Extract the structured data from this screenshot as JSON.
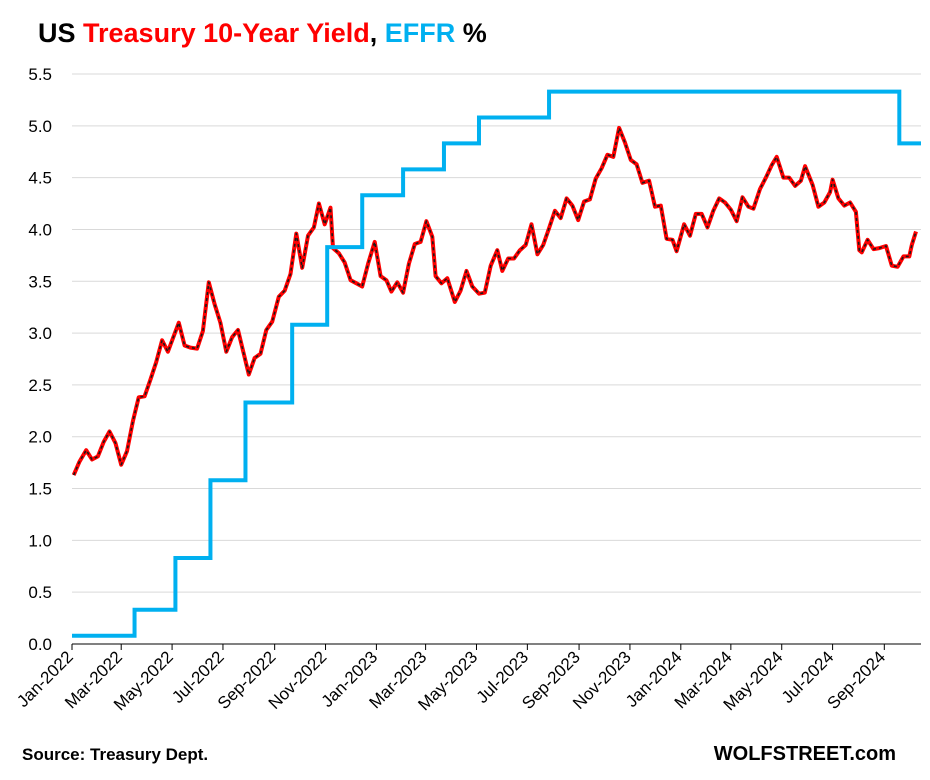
{
  "header": {
    "title_parts": [
      "US ",
      "Treasury 10-Year Yield",
      ", ",
      "EFFR",
      " %"
    ]
  },
  "footer": {
    "source": "Source: Treasury Dept.",
    "brand": "WOLFSTREET.com"
  },
  "colors": {
    "treasury": "#ff0000",
    "treasury_overlay": "#1a1a1a",
    "effr": "#00b0f0",
    "grid": "#d9d9d9",
    "axis": "#000000"
  },
  "chart_data": {
    "type": "line",
    "title": "US Treasury 10-Year Yield, EFFR %",
    "ylim": [
      0.0,
      5.5
    ],
    "y_ticks": [
      "0.0",
      "0.5",
      "1.0",
      "1.5",
      "2.0",
      "2.5",
      "3.0",
      "3.5",
      "4.0",
      "4.5",
      "5.0",
      "5.5"
    ],
    "x_range": [
      "2022-01-01",
      "2024-10-15"
    ],
    "x_ticks": [
      "Jan-2022",
      "Mar-2022",
      "May-2022",
      "Jul-2022",
      "Sep-2022",
      "Nov-2022",
      "Jan-2023",
      "Mar-2023",
      "May-2023",
      "Jul-2023",
      "Sep-2023",
      "Nov-2023",
      "Jan-2024",
      "Mar-2024",
      "May-2024",
      "Jul-2024",
      "Sep-2024"
    ],
    "grid": "horizontal",
    "legend": "none (series named in title)",
    "series": [
      {
        "name": "Treasury 10-Year Yield",
        "style": "line",
        "points": [
          [
            "2022-01-03",
            1.63
          ],
          [
            "2022-01-10",
            1.76
          ],
          [
            "2022-01-18",
            1.87
          ],
          [
            "2022-01-25",
            1.78
          ],
          [
            "2022-02-01",
            1.81
          ],
          [
            "2022-02-08",
            1.95
          ],
          [
            "2022-02-15",
            2.05
          ],
          [
            "2022-02-22",
            1.94
          ],
          [
            "2022-03-01",
            1.73
          ],
          [
            "2022-03-08",
            1.86
          ],
          [
            "2022-03-15",
            2.15
          ],
          [
            "2022-03-22",
            2.38
          ],
          [
            "2022-03-29",
            2.39
          ],
          [
            "2022-04-05",
            2.55
          ],
          [
            "2022-04-12",
            2.72
          ],
          [
            "2022-04-19",
            2.93
          ],
          [
            "2022-04-26",
            2.82
          ],
          [
            "2022-05-03",
            2.97
          ],
          [
            "2022-05-09",
            3.1
          ],
          [
            "2022-05-16",
            2.88
          ],
          [
            "2022-05-23",
            2.86
          ],
          [
            "2022-05-31",
            2.85
          ],
          [
            "2022-06-07",
            3.02
          ],
          [
            "2022-06-14",
            3.49
          ],
          [
            "2022-06-21",
            3.28
          ],
          [
            "2022-06-28",
            3.1
          ],
          [
            "2022-07-05",
            2.82
          ],
          [
            "2022-07-12",
            2.96
          ],
          [
            "2022-07-19",
            3.03
          ],
          [
            "2022-07-26",
            2.8
          ],
          [
            "2022-08-01",
            2.6
          ],
          [
            "2022-08-08",
            2.76
          ],
          [
            "2022-08-15",
            2.8
          ],
          [
            "2022-08-22",
            3.03
          ],
          [
            "2022-08-29",
            3.11
          ],
          [
            "2022-09-06",
            3.35
          ],
          [
            "2022-09-13",
            3.41
          ],
          [
            "2022-09-20",
            3.57
          ],
          [
            "2022-09-27",
            3.96
          ],
          [
            "2022-10-04",
            3.63
          ],
          [
            "2022-10-11",
            3.94
          ],
          [
            "2022-10-18",
            4.02
          ],
          [
            "2022-10-24",
            4.25
          ],
          [
            "2022-10-31",
            4.05
          ],
          [
            "2022-11-07",
            4.21
          ],
          [
            "2022-11-10",
            3.82
          ],
          [
            "2022-11-17",
            3.77
          ],
          [
            "2022-11-24",
            3.68
          ],
          [
            "2022-12-01",
            3.51
          ],
          [
            "2022-12-08",
            3.48
          ],
          [
            "2022-12-15",
            3.45
          ],
          [
            "2022-12-22",
            3.67
          ],
          [
            "2022-12-30",
            3.88
          ],
          [
            "2023-01-06",
            3.55
          ],
          [
            "2023-01-13",
            3.51
          ],
          [
            "2023-01-19",
            3.4
          ],
          [
            "2023-01-26",
            3.49
          ],
          [
            "2023-02-02",
            3.39
          ],
          [
            "2023-02-09",
            3.67
          ],
          [
            "2023-02-16",
            3.86
          ],
          [
            "2023-02-23",
            3.88
          ],
          [
            "2023-03-02",
            4.08
          ],
          [
            "2023-03-09",
            3.93
          ],
          [
            "2023-03-13",
            3.55
          ],
          [
            "2023-03-20",
            3.48
          ],
          [
            "2023-03-27",
            3.53
          ],
          [
            "2023-04-05",
            3.3
          ],
          [
            "2023-04-12",
            3.41
          ],
          [
            "2023-04-19",
            3.6
          ],
          [
            "2023-04-26",
            3.45
          ],
          [
            "2023-05-04",
            3.38
          ],
          [
            "2023-05-11",
            3.39
          ],
          [
            "2023-05-18",
            3.65
          ],
          [
            "2023-05-26",
            3.8
          ],
          [
            "2023-06-01",
            3.6
          ],
          [
            "2023-06-08",
            3.72
          ],
          [
            "2023-06-15",
            3.72
          ],
          [
            "2023-06-22",
            3.8
          ],
          [
            "2023-06-29",
            3.85
          ],
          [
            "2023-07-06",
            4.05
          ],
          [
            "2023-07-13",
            3.76
          ],
          [
            "2023-07-20",
            3.85
          ],
          [
            "2023-07-27",
            4.01
          ],
          [
            "2023-08-03",
            4.18
          ],
          [
            "2023-08-10",
            4.11
          ],
          [
            "2023-08-17",
            4.3
          ],
          [
            "2023-08-24",
            4.23
          ],
          [
            "2023-08-31",
            4.09
          ],
          [
            "2023-09-07",
            4.27
          ],
          [
            "2023-09-14",
            4.29
          ],
          [
            "2023-09-21",
            4.49
          ],
          [
            "2023-09-28",
            4.59
          ],
          [
            "2023-10-05",
            4.72
          ],
          [
            "2023-10-12",
            4.7
          ],
          [
            "2023-10-19",
            4.98
          ],
          [
            "2023-10-26",
            4.84
          ],
          [
            "2023-11-02",
            4.67
          ],
          [
            "2023-11-09",
            4.63
          ],
          [
            "2023-11-16",
            4.45
          ],
          [
            "2023-11-24",
            4.47
          ],
          [
            "2023-12-01",
            4.22
          ],
          [
            "2023-12-08",
            4.23
          ],
          [
            "2023-12-15",
            3.91
          ],
          [
            "2023-12-22",
            3.9
          ],
          [
            "2023-12-27",
            3.79
          ],
          [
            "2024-01-05",
            4.05
          ],
          [
            "2024-01-12",
            3.94
          ],
          [
            "2024-01-19",
            4.15
          ],
          [
            "2024-01-26",
            4.15
          ],
          [
            "2024-02-02",
            4.02
          ],
          [
            "2024-02-09",
            4.18
          ],
          [
            "2024-02-16",
            4.3
          ],
          [
            "2024-02-23",
            4.26
          ],
          [
            "2024-03-01",
            4.19
          ],
          [
            "2024-03-08",
            4.08
          ],
          [
            "2024-03-15",
            4.31
          ],
          [
            "2024-03-22",
            4.22
          ],
          [
            "2024-03-28",
            4.2
          ],
          [
            "2024-04-05",
            4.39
          ],
          [
            "2024-04-12",
            4.5
          ],
          [
            "2024-04-19",
            4.62
          ],
          [
            "2024-04-25",
            4.7
          ],
          [
            "2024-05-03",
            4.5
          ],
          [
            "2024-05-10",
            4.5
          ],
          [
            "2024-05-17",
            4.42
          ],
          [
            "2024-05-24",
            4.47
          ],
          [
            "2024-05-29",
            4.61
          ],
          [
            "2024-06-07",
            4.43
          ],
          [
            "2024-06-14",
            4.22
          ],
          [
            "2024-06-21",
            4.26
          ],
          [
            "2024-06-28",
            4.36
          ],
          [
            "2024-07-01",
            4.48
          ],
          [
            "2024-07-08",
            4.3
          ],
          [
            "2024-07-15",
            4.23
          ],
          [
            "2024-07-22",
            4.26
          ],
          [
            "2024-07-29",
            4.17
          ],
          [
            "2024-08-02",
            3.8
          ],
          [
            "2024-08-05",
            3.78
          ],
          [
            "2024-08-12",
            3.9
          ],
          [
            "2024-08-19",
            3.81
          ],
          [
            "2024-08-26",
            3.82
          ],
          [
            "2024-09-03",
            3.84
          ],
          [
            "2024-09-10",
            3.65
          ],
          [
            "2024-09-17",
            3.64
          ],
          [
            "2024-09-24",
            3.74
          ],
          [
            "2024-10-01",
            3.74
          ],
          [
            "2024-10-04",
            3.85
          ],
          [
            "2024-10-09",
            3.98
          ]
        ]
      },
      {
        "name": "EFFR",
        "style": "step",
        "points": [
          [
            "2022-01-01",
            0.08
          ],
          [
            "2022-03-17",
            0.33
          ],
          [
            "2022-05-05",
            0.83
          ],
          [
            "2022-06-16",
            1.58
          ],
          [
            "2022-07-28",
            2.33
          ],
          [
            "2022-09-22",
            3.08
          ],
          [
            "2022-11-03",
            3.83
          ],
          [
            "2022-12-15",
            4.33
          ],
          [
            "2023-02-02",
            4.58
          ],
          [
            "2023-03-23",
            4.83
          ],
          [
            "2023-05-04",
            5.08
          ],
          [
            "2023-07-27",
            5.33
          ],
          [
            "2024-09-19",
            4.83
          ],
          [
            "2024-10-15",
            4.83
          ]
        ]
      }
    ]
  }
}
